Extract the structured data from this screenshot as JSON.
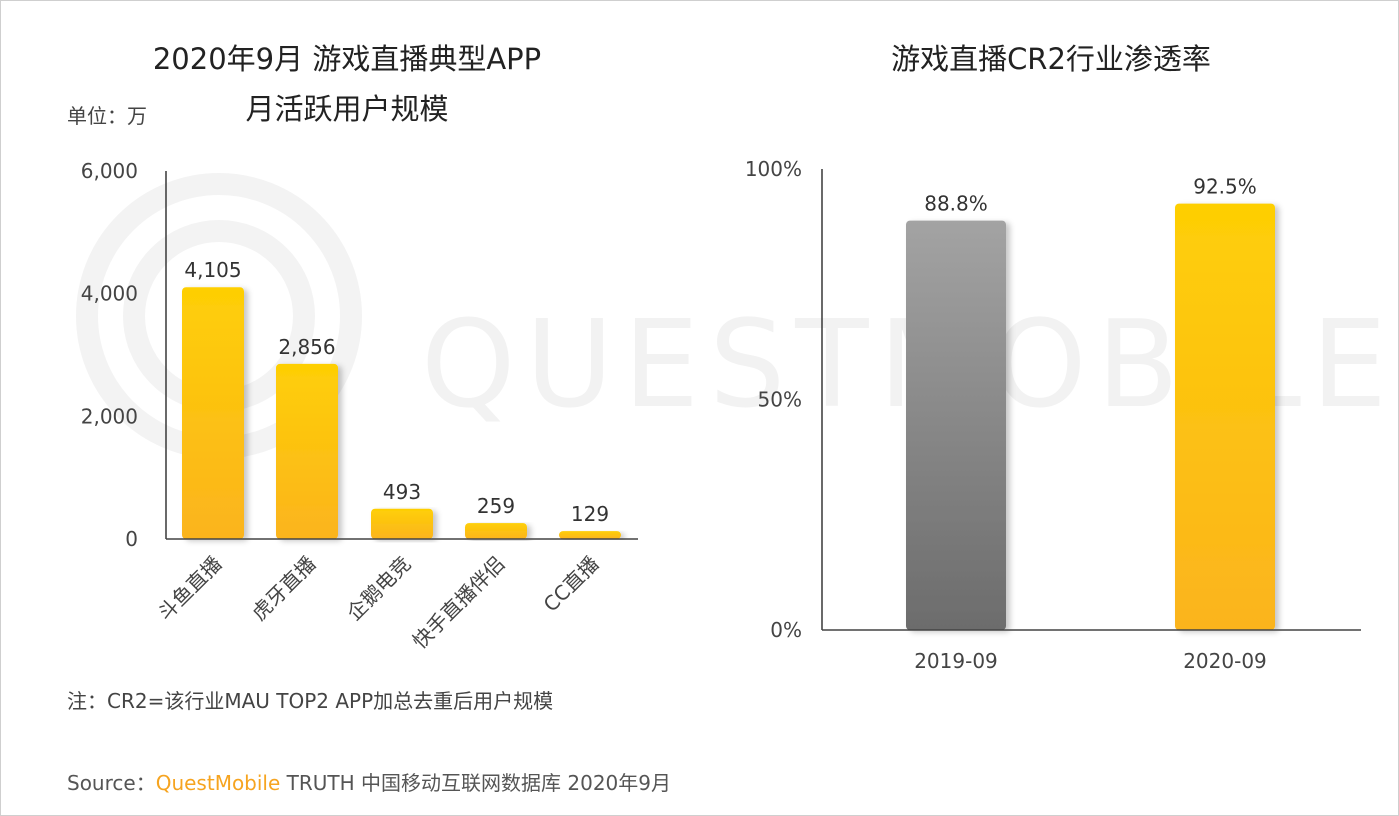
{
  "watermark": {
    "text": "QUESTMOBILE"
  },
  "chart_data": [
    {
      "type": "bar",
      "title_line1": "2020年9月 游戏直播典型APP",
      "title_line2": "月活跃用户规模",
      "unit_label": "单位：万",
      "categories": [
        "斗鱼直播",
        "虎牙直播",
        "企鹅电竞",
        "快手直播伴侣",
        "CC直播"
      ],
      "values": [
        4105,
        2856,
        493,
        259,
        129
      ],
      "value_labels": [
        "4,105",
        "2,856",
        "493",
        "259",
        "129"
      ],
      "ylim": [
        0,
        6000
      ],
      "yticks": [
        0,
        2000,
        4000,
        6000
      ],
      "ytick_labels": [
        "0",
        "2,000",
        "4,000",
        "6,000"
      ],
      "bar_color": "#fcbf0e"
    },
    {
      "type": "bar",
      "title": "游戏直播CR2行业渗透率",
      "categories": [
        "2019-09",
        "2020-09"
      ],
      "values": [
        88.8,
        92.5
      ],
      "value_labels": [
        "88.8%",
        "92.5%"
      ],
      "ylim": [
        0,
        100
      ],
      "yticks": [
        0,
        50,
        100
      ],
      "ytick_labels": [
        "0%",
        "50%",
        "100%"
      ],
      "bar_colors": [
        "#8a8a8a",
        "#fcbf0e"
      ]
    }
  ],
  "note": "注：CR2=该行业MAU TOP2 APP加总去重后用户规模",
  "source": {
    "prefix": "Source：",
    "brand": "QuestMobile",
    "suffix": " TRUTH 中国移动互联网数据库 2020年9月"
  }
}
